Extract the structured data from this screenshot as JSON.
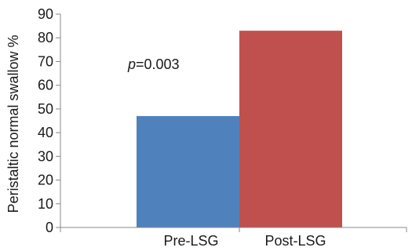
{
  "chart_data": {
    "type": "bar",
    "title": "",
    "xlabel": "",
    "ylabel": "Peristaltic normal swallow %",
    "ylim": [
      0,
      90
    ],
    "yticks": [
      0,
      10,
      20,
      30,
      40,
      50,
      60,
      70,
      80,
      90
    ],
    "categories": [
      "Pre-LSG",
      "Post-LSG"
    ],
    "values": [
      47,
      83
    ],
    "colors": [
      "#4f81bd",
      "#c0504d"
    ],
    "grid": false,
    "legend": "none",
    "annotation": {
      "prefix": "p",
      "suffix": "=0.003"
    }
  }
}
